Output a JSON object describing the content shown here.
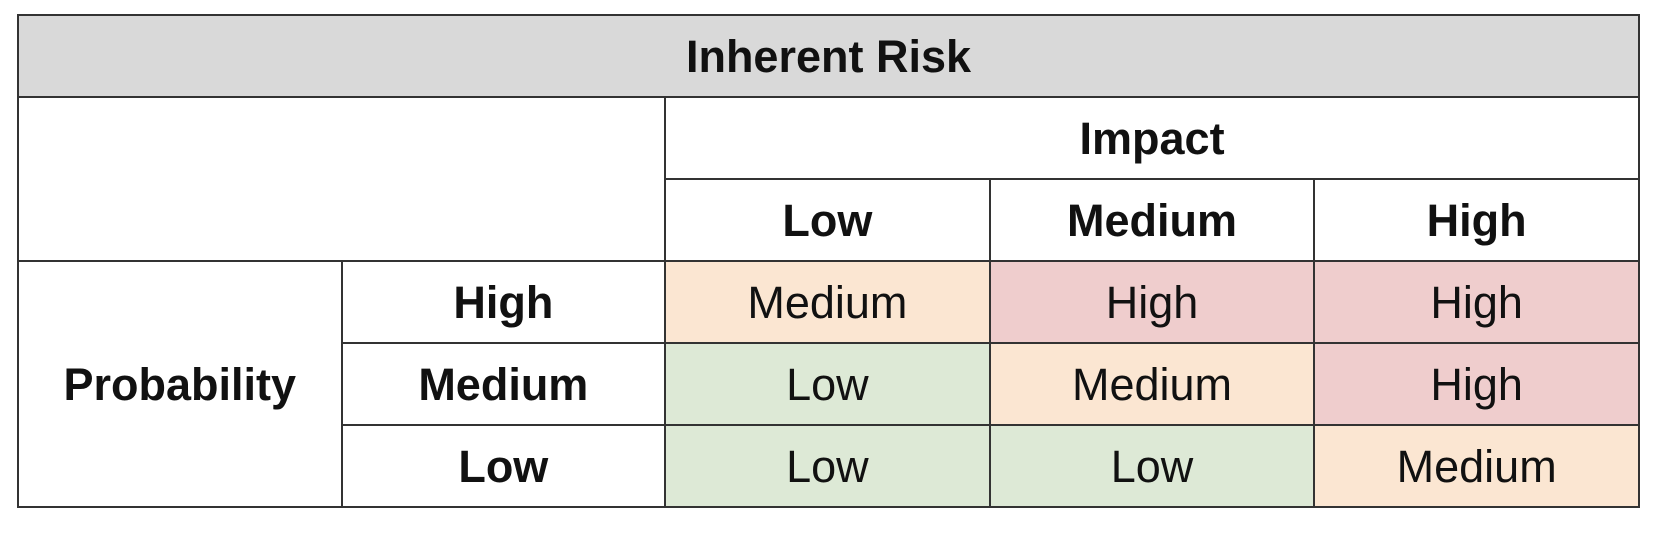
{
  "title": "Inherent Risk",
  "impact_label": "Impact",
  "probability_label": "Probability",
  "impact_levels": [
    "Low",
    "Medium",
    "High"
  ],
  "rows": [
    {
      "probability": "High",
      "cells": [
        "Medium",
        "High",
        "High"
      ]
    },
    {
      "probability": "Medium",
      "cells": [
        "Low",
        "Medium",
        "High"
      ]
    },
    {
      "probability": "Low",
      "cells": [
        "Low",
        "Low",
        "Medium"
      ]
    }
  ],
  "colors": {
    "title_bg": "#d9d9d9",
    "Low": "#dde9d6",
    "Medium": "#fbe6d2",
    "High": "#efcdcd",
    "border": "#333333"
  }
}
